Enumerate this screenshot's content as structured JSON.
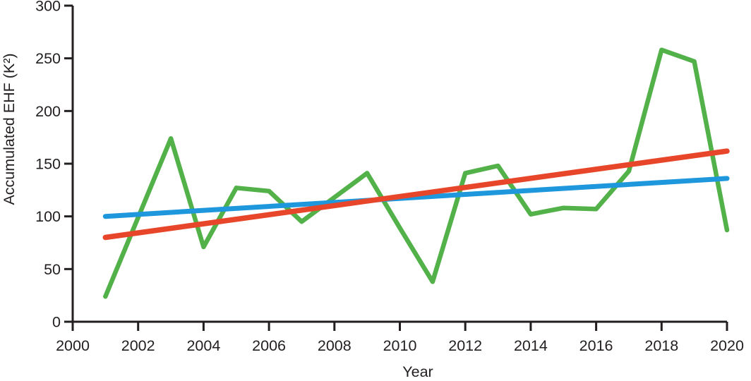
{
  "page": {
    "background": "#ffffff",
    "text_color": "#231f20"
  },
  "chart_data": {
    "type": "line",
    "title": "",
    "xlabel": "Year",
    "ylabel": "Accumulated EHF (K²)",
    "xlim": [
      2000,
      2020
    ],
    "ylim": [
      0,
      300
    ],
    "x_ticks": [
      2000,
      2002,
      2004,
      2006,
      2008,
      2010,
      2012,
      2014,
      2016,
      2018,
      2020
    ],
    "y_ticks": [
      0,
      50,
      100,
      150,
      200,
      250,
      300
    ],
    "grid": false,
    "legend_position": "none",
    "axis_color": "#231f20",
    "series": [
      {
        "name": "annual accumulated EHF",
        "role": "data-line",
        "color": "#53b14a",
        "stroke_width": 6.5,
        "x": [
          2001,
          2002,
          2003,
          2004,
          2005,
          2006,
          2007,
          2008,
          2009,
          2010,
          2011,
          2012,
          2013,
          2014,
          2015,
          2016,
          2017,
          2018,
          2019,
          2020
        ],
        "values": [
          24,
          99,
          174,
          71,
          127,
          124,
          95,
          118,
          141,
          89,
          38,
          141,
          148,
          102,
          108,
          107,
          143,
          258,
          247,
          87
        ]
      },
      {
        "name": "trend line blue",
        "role": "trend-line",
        "color": "#1e97dc",
        "stroke_width": 7,
        "x": [
          2001,
          2020
        ],
        "values": [
          100,
          136
        ]
      },
      {
        "name": "trend line red",
        "role": "trend-line",
        "color": "#e8462a",
        "stroke_width": 7.5,
        "x": [
          2001,
          2020
        ],
        "values": [
          80,
          162
        ]
      }
    ]
  }
}
